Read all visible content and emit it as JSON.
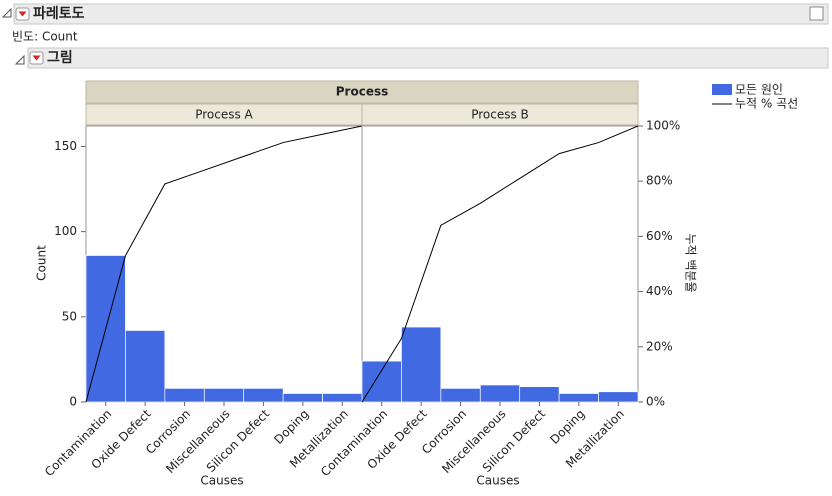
{
  "header": {
    "title": "파레토도",
    "frequency": "빈도: Count"
  },
  "section": {
    "title": "그림"
  },
  "chart_data": {
    "type": "pareto",
    "title": "Process",
    "ylabel": "Count",
    "y2label": "누적 백분율",
    "xlabel": "Causes",
    "bar_color": "#4169e1",
    "line_color": "#000000",
    "legend": {
      "bars": "모든 원인",
      "line": "누적 % 곡선"
    },
    "ylim": [
      0,
      162
    ],
    "yticks": [
      0,
      50,
      100,
      150
    ],
    "y2lim": [
      0,
      100
    ],
    "y2ticks": [
      {
        "value": 0,
        "label": "0%"
      },
      {
        "value": 20,
        "label": "20%"
      },
      {
        "value": 40,
        "label": "40%"
      },
      {
        "value": 60,
        "label": "60%"
      },
      {
        "value": 80,
        "label": "80%"
      },
      {
        "value": 100,
        "label": "100%"
      }
    ],
    "panels": [
      {
        "name": "Process A",
        "categories": [
          "Contamination",
          "Oxide Defect",
          "Corrosion",
          "Miscellaneous",
          "Silicon Defect",
          "Doping",
          "Metallization"
        ],
        "values": [
          86,
          42,
          8,
          8,
          8,
          5,
          5
        ],
        "cumulative": [
          53,
          79,
          84,
          89,
          94,
          97,
          100
        ]
      },
      {
        "name": "Process B",
        "categories": [
          "Contamination",
          "Oxide Defect",
          "Corrosion",
          "Miscellaneous",
          "Silicon Defect",
          "Doping",
          "Metallization"
        ],
        "values": [
          24,
          44,
          8,
          10,
          9,
          5,
          6
        ],
        "cumulative": [
          23,
          64,
          72,
          81,
          90,
          94,
          100
        ]
      }
    ]
  }
}
